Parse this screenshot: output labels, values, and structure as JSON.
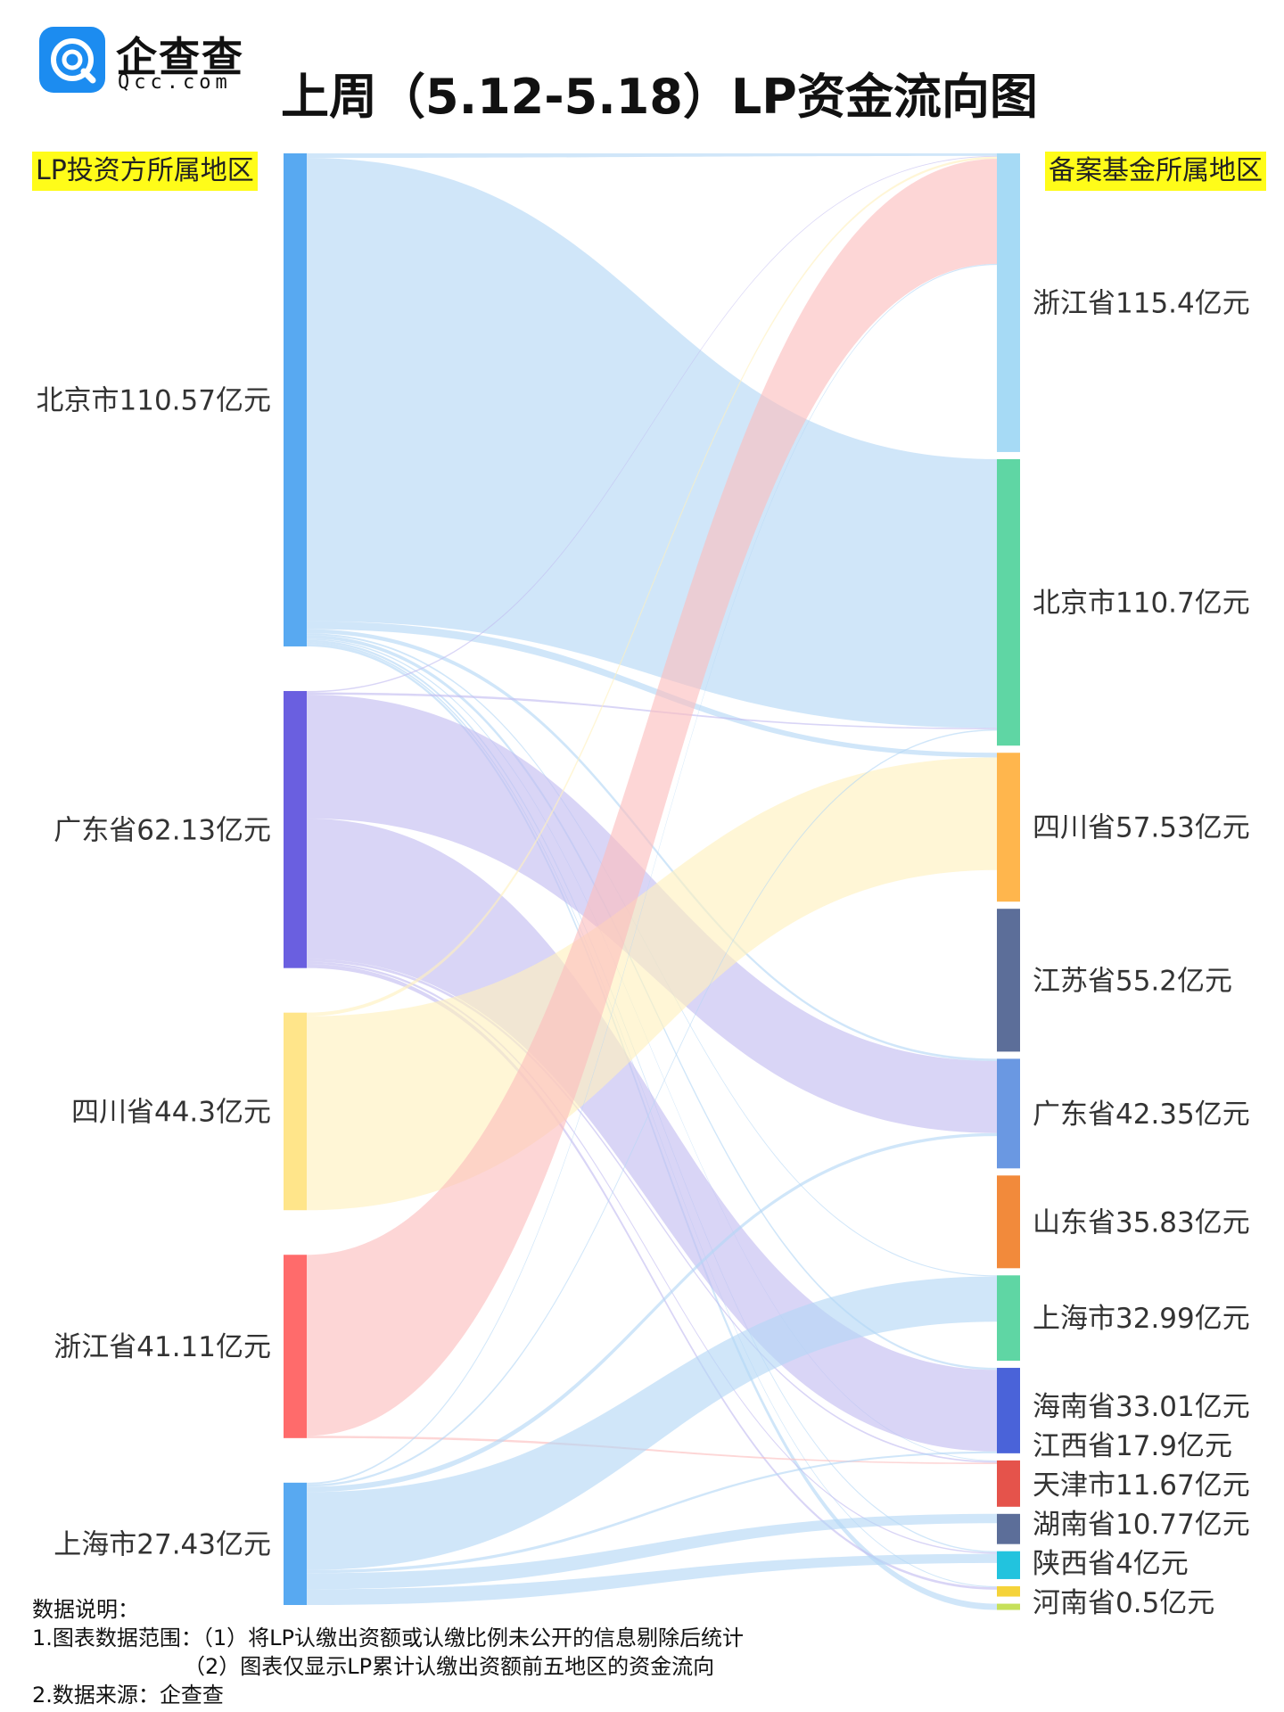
{
  "brand": {
    "name": "企查查",
    "url": "Qcc.com",
    "icon": "qcc-logo-icon",
    "color": "#1c8cf0"
  },
  "title": "上周（5.12-5.18）LP资金流向图",
  "left_heading": "LP投资方所属地区",
  "right_heading": "备案基金所属地区",
  "notes": {
    "heading": "数据说明：",
    "line1": "1.图表数据范围：（1）将LP认缴出资额或认缴比例未公开的信息剔除后统计",
    "line2": "（2）图表仅显示LP累计认缴出资额前五地区的资金流向",
    "line3": "2.数据来源：企查查"
  },
  "chart_data": {
    "type": "sankey",
    "unit": "亿元",
    "sources": [
      {
        "name": "北京市",
        "value": 110.57,
        "label": "北京市110.57亿元",
        "color": "#58a9f1",
        "link_color": "#b3d7f5"
      },
      {
        "name": "广东省",
        "value": 62.13,
        "label": "广东省62.13亿元",
        "color": "#6a5fe0",
        "link_color": "#c2bcf1"
      },
      {
        "name": "四川省",
        "value": 44.3,
        "label": "四川省44.3亿元",
        "color": "#ffe58a",
        "link_color": "#fff0bd"
      },
      {
        "name": "浙江省",
        "value": 41.11,
        "label": "浙江省41.11亿元",
        "color": "#ff6b6b",
        "link_color": "#fbbdbd"
      },
      {
        "name": "上海市",
        "value": 27.43,
        "label": "上海市27.43亿元",
        "color": "#58a9f1",
        "link_color": "#b3d7f5"
      }
    ],
    "targets": [
      {
        "name": "浙江省",
        "value": 115.4,
        "label": "浙江省115.4亿元",
        "color": "#a6daf5"
      },
      {
        "name": "北京市",
        "value": 110.7,
        "label": "北京市110.7亿元",
        "color": "#5fd6a4"
      },
      {
        "name": "四川省",
        "value": 57.53,
        "label": "四川省57.53亿元",
        "color": "#ffb64d"
      },
      {
        "name": "江苏省",
        "value": 55.2,
        "label": "江苏省55.2亿元",
        "color": "#5c6e99"
      },
      {
        "name": "广东省",
        "value": 42.35,
        "label": "广东省42.35亿元",
        "color": "#6a98e2"
      },
      {
        "name": "山东省",
        "value": 35.83,
        "label": "山东省35.83亿元",
        "color": "#f28a3b"
      },
      {
        "name": "上海市",
        "value": 32.99,
        "label": "上海市32.99亿元",
        "color": "#5fd6a4"
      },
      {
        "name": "海南省",
        "value": 33.01,
        "label": "海南省33.01亿元",
        "color": "#4a63d9"
      },
      {
        "name": "江西省",
        "value": 17.9,
        "label": "江西省17.9亿元",
        "color": "#e5534b"
      },
      {
        "name": "天津市",
        "value": 11.67,
        "label": "天津市11.67亿元",
        "color": "#5c6e99"
      },
      {
        "name": "湖南省",
        "value": 10.77,
        "label": "湖南省10.77亿元",
        "color": "#22c3de"
      },
      {
        "name": "陕西省",
        "value": 4,
        "label": "陕西省4亿元",
        "color": "#f5d33a"
      },
      {
        "name": "河南省",
        "value": 0.5,
        "label": "河南省0.5亿元",
        "color": "#c6e05a"
      }
    ],
    "links": [
      {
        "source": "北京市",
        "target": "浙江省",
        "value": 1.0
      },
      {
        "source": "北京市",
        "target": "北京市",
        "value": 103.9
      },
      {
        "source": "北京市",
        "target": "四川省",
        "value": 1.8
      },
      {
        "source": "北京市",
        "target": "广东省",
        "value": 0.9
      },
      {
        "source": "北京市",
        "target": "上海市",
        "value": 0.4
      },
      {
        "source": "北京市",
        "target": "海南省",
        "value": 0.8
      },
      {
        "source": "北京市",
        "target": "江西省",
        "value": 0.3
      },
      {
        "source": "北京市",
        "target": "湖南省",
        "value": 0.5
      },
      {
        "source": "北京市",
        "target": "陕西省",
        "value": 0.4
      },
      {
        "source": "北京市",
        "target": "河南省",
        "value": 0.57
      },
      {
        "source": "广东省",
        "target": "浙江省",
        "value": 0.3
      },
      {
        "source": "广东省",
        "target": "北京市",
        "value": 0.5
      },
      {
        "source": "广东省",
        "target": "广东省",
        "value": 27.8
      },
      {
        "source": "广东省",
        "target": "海南省",
        "value": 31.5
      },
      {
        "source": "广东省",
        "target": "江西省",
        "value": 0.6
      },
      {
        "source": "广东省",
        "target": "湖南省",
        "value": 0.5
      },
      {
        "source": "广东省",
        "target": "陕西省",
        "value": 0.93
      },
      {
        "source": "四川省",
        "target": "浙江省",
        "value": 0.8
      },
      {
        "source": "四川省",
        "target": "四川省",
        "value": 43.5
      },
      {
        "source": "浙江省",
        "target": "浙江省",
        "value": 40.6
      },
      {
        "source": "浙江省",
        "target": "江西省",
        "value": 0.51
      },
      {
        "source": "上海市",
        "target": "浙江省",
        "value": 0.4
      },
      {
        "source": "上海市",
        "target": "北京市",
        "value": 0.5
      },
      {
        "source": "上海市",
        "target": "广东省",
        "value": 1.2
      },
      {
        "source": "上海市",
        "target": "上海市",
        "value": 17.5
      },
      {
        "source": "上海市",
        "target": "海南省",
        "value": 0.7
      },
      {
        "source": "上海市",
        "target": "天津市",
        "value": 3.6
      },
      {
        "source": "上海市",
        "target": "湖南省",
        "value": 3.53
      }
    ]
  }
}
